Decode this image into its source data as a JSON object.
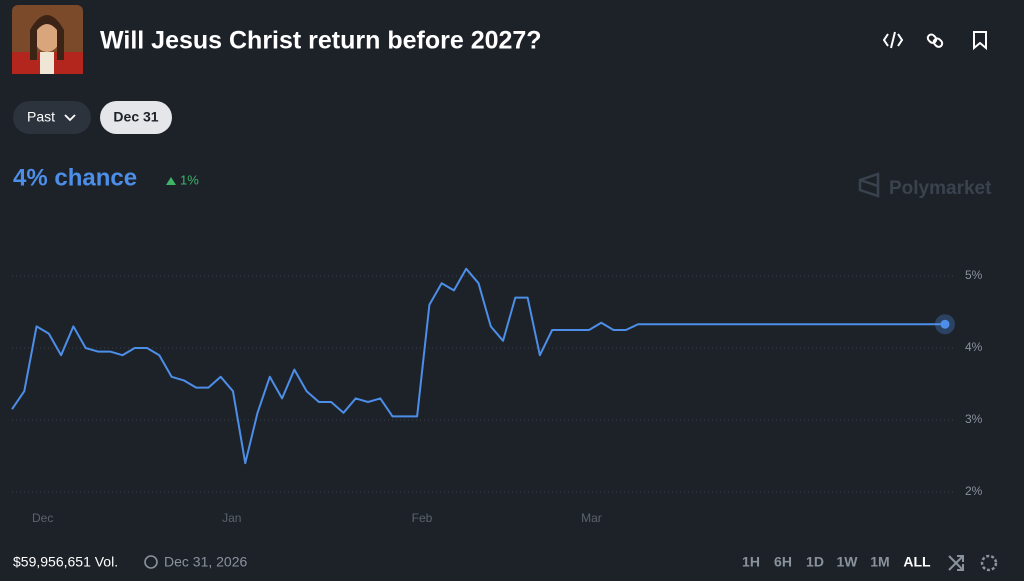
{
  "header": {
    "title": "Will Jesus Christ return before 2027?"
  },
  "filters": [
    "Past",
    "Dec 31"
  ],
  "summary": {
    "chance": "4% chance",
    "change": "1%"
  },
  "watermark": "Polymarket",
  "chart_data": {
    "type": "line",
    "color": "#4c8ee8",
    "grid": true,
    "values": [
      3.15,
      3.4,
      4.3,
      4.2,
      3.9,
      4.3,
      4.0,
      3.95,
      3.95,
      3.9,
      4.0,
      4.0,
      3.9,
      3.6,
      3.55,
      3.45,
      3.45,
      3.6,
      3.4,
      2.4,
      3.1,
      3.6,
      3.3,
      3.7,
      3.4,
      3.25,
      3.25,
      3.1,
      3.3,
      3.25,
      3.3,
      3.05,
      3.05,
      3.05,
      4.6,
      4.9,
      4.8,
      5.1,
      4.9,
      4.3,
      4.1,
      4.7,
      4.7,
      3.9,
      4.25,
      4.25,
      4.25,
      4.25,
      4.35,
      4.25,
      4.25,
      4.33,
      4.33,
      4.33,
      4.33,
      4.33,
      4.33,
      4.33,
      4.33,
      4.33,
      4.33,
      4.33,
      4.33,
      4.33,
      4.33,
      4.33,
      4.33,
      4.33,
      4.33,
      4.33,
      4.33,
      4.33,
      4.33,
      4.33,
      4.33,
      4.33,
      4.33
    ],
    "xlim": [
      0,
      76
    ],
    "xticks": [
      {
        "value": 2.5,
        "label": "Dec"
      },
      {
        "value": 17.9,
        "label": "Jan"
      },
      {
        "value": 33.4,
        "label": "Feb"
      },
      {
        "value": 47.2,
        "label": "Mar"
      }
    ],
    "ylim": [
      1.8,
      5.5
    ],
    "yticks": [
      {
        "value": 2,
        "label": "2%"
      },
      {
        "value": 3,
        "label": "3%"
      },
      {
        "value": 4,
        "label": "4%"
      },
      {
        "value": 5,
        "label": "5%"
      }
    ]
  },
  "footer": {
    "volume": "$59,956,651 Vol.",
    "end_date": "Dec 31, 2026",
    "ranges": [
      "1H",
      "6H",
      "1D",
      "1W",
      "1M",
      "ALL"
    ]
  }
}
